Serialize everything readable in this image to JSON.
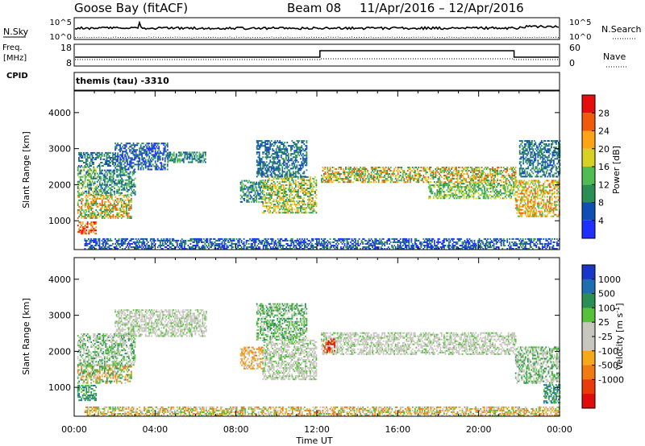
{
  "header": {
    "title": "Goose Bay (fitACF)",
    "beam": "Beam 08",
    "date_range": "11/Apr/2016 – 12/Apr/2016"
  },
  "noise_panel": {
    "left_label": "N.Sky",
    "right_label": "N.Search",
    "left_ticks": [
      "10^5",
      "10^0"
    ],
    "right_ticks": [
      "10^5",
      "10^0"
    ]
  },
  "freq_panel": {
    "left_label_1": "Freq.",
    "left_label_2": "[MHz]",
    "right_label": "Nave",
    "left_ticks": [
      "18",
      "8"
    ],
    "right_ticks": [
      "60",
      "0"
    ],
    "cpid_label": "CPID",
    "cpid_value": "themis (tau) -3310"
  },
  "colors": {
    "power": [
      "#1e30ff",
      "#0f4fb3",
      "#2a8e55",
      "#52bc54",
      "#d8d023",
      "#ffa317",
      "#f15a0b",
      "#e50d0d"
    ],
    "velocity": [
      "#1936c9",
      "#1f6fb0",
      "#2b8f55",
      "#55c23a",
      "#c8c7bf",
      "#c8c7bf",
      "#f5a81a",
      "#f07a14",
      "#e83a0b",
      "#e10b0b"
    ]
  },
  "chart_data": [
    {
      "type": "heatmap",
      "name": "power",
      "ylabel": "Slant Range [km]",
      "xlabel": "Time UT",
      "x_ticks": [
        "00:00",
        "04:00",
        "08:00",
        "12:00",
        "16:00",
        "20:00",
        "00:00"
      ],
      "x_hours": [
        0,
        4,
        8,
        12,
        16,
        20,
        24
      ],
      "xlim_hours": [
        0,
        24
      ],
      "ylim": [
        200,
        4600
      ],
      "y_ticks": [
        1000,
        2000,
        3000,
        4000
      ],
      "colorbar": {
        "label": "Power [dB]",
        "ticks": [
          4,
          8,
          12,
          16,
          20,
          24,
          28
        ],
        "range": [
          0,
          32
        ]
      },
      "regions": [
        {
          "t0": 0.15,
          "t1": 1.1,
          "r0": 620,
          "r1": 950,
          "levels": [
            5,
            6,
            7
          ]
        },
        {
          "t0": 0.15,
          "t1": 2.8,
          "r0": 1050,
          "r1": 1700,
          "levels": [
            3,
            4,
            5,
            6,
            2
          ]
        },
        {
          "t0": 0.15,
          "t1": 1.3,
          "r0": 1700,
          "r1": 2500,
          "levels": [
            2,
            3,
            1,
            4
          ]
        },
        {
          "t0": 1.3,
          "t1": 3.0,
          "r0": 1700,
          "r1": 2400,
          "levels": [
            2,
            1,
            3
          ]
        },
        {
          "t0": 0.2,
          "t1": 2.0,
          "r0": 2500,
          "r1": 2900,
          "levels": [
            1,
            2
          ]
        },
        {
          "t0": 2.0,
          "t1": 4.6,
          "r0": 2400,
          "r1": 3150,
          "levels": [
            1,
            0,
            2
          ]
        },
        {
          "t0": 4.6,
          "t1": 6.5,
          "r0": 2600,
          "r1": 2900,
          "levels": [
            1,
            2,
            3
          ]
        },
        {
          "t0": 8.2,
          "t1": 9.3,
          "r0": 1500,
          "r1": 2100,
          "levels": [
            1,
            2,
            3
          ]
        },
        {
          "t0": 9.3,
          "t1": 12.0,
          "r0": 1200,
          "r1": 2200,
          "levels": [
            2,
            3,
            4,
            5
          ]
        },
        {
          "t0": 9.0,
          "t1": 11.5,
          "r0": 2200,
          "r1": 3200,
          "levels": [
            1,
            2
          ]
        },
        {
          "t0": 12.2,
          "t1": 21.8,
          "r0": 2050,
          "r1": 2500,
          "levels": [
            2,
            3,
            4,
            5,
            6
          ]
        },
        {
          "t0": 17.5,
          "t1": 21.8,
          "r0": 1600,
          "r1": 2050,
          "levels": [
            2,
            3,
            4
          ]
        },
        {
          "t0": 21.8,
          "t1": 24.0,
          "r0": 1100,
          "r1": 2100,
          "levels": [
            3,
            4,
            5,
            6
          ]
        },
        {
          "t0": 22.0,
          "t1": 24.0,
          "r0": 2200,
          "r1": 3200,
          "levels": [
            1,
            2
          ]
        },
        {
          "t0": 0.5,
          "t1": 24.0,
          "r0": 200,
          "r1": 480,
          "levels": [
            0,
            1,
            2
          ]
        }
      ]
    },
    {
      "type": "heatmap",
      "name": "velocity",
      "ylabel": "Slant Range [km]",
      "xlabel": "Time UT",
      "x_ticks": [
        "00:00",
        "04:00",
        "08:00",
        "12:00",
        "16:00",
        "20:00",
        "00:00"
      ],
      "x_hours": [
        0,
        4,
        8,
        12,
        16,
        20,
        24
      ],
      "xlim_hours": [
        0,
        24
      ],
      "ylim": [
        200,
        4600
      ],
      "y_ticks": [
        1000,
        2000,
        3000,
        4000
      ],
      "colorbar": {
        "label": "Velocity [m s^-1]",
        "tick_labels": [
          "1000",
          "500",
          "100",
          "25",
          "-25",
          "-100",
          "-500",
          "-1000"
        ]
      },
      "regions": [
        {
          "t0": 0.15,
          "t1": 1.1,
          "r0": 620,
          "r1": 1050,
          "levels": [
            1,
            2,
            3
          ]
        },
        {
          "t0": 0.15,
          "t1": 2.8,
          "r0": 1100,
          "r1": 1600,
          "levels": [
            2,
            3,
            6,
            7,
            4
          ]
        },
        {
          "t0": 0.15,
          "t1": 3.0,
          "r0": 1600,
          "r1": 2500,
          "levels": [
            4,
            4,
            3,
            2
          ]
        },
        {
          "t0": 2.0,
          "t1": 6.5,
          "r0": 2400,
          "r1": 3150,
          "levels": [
            4,
            4,
            4,
            3
          ]
        },
        {
          "t0": 8.2,
          "t1": 9.3,
          "r0": 1500,
          "r1": 2100,
          "levels": [
            4,
            7,
            6
          ]
        },
        {
          "t0": 9.3,
          "t1": 12.0,
          "r0": 1200,
          "r1": 2300,
          "levels": [
            4,
            4,
            4,
            3
          ]
        },
        {
          "t0": 9.0,
          "t1": 11.5,
          "r0": 2300,
          "r1": 3300,
          "levels": [
            4,
            3,
            2
          ]
        },
        {
          "t0": 12.2,
          "t1": 21.8,
          "r0": 1900,
          "r1": 2500,
          "levels": [
            4,
            4,
            4,
            4,
            3
          ]
        },
        {
          "t0": 12.3,
          "t1": 12.9,
          "r0": 1950,
          "r1": 2350,
          "levels": [
            8,
            9,
            7
          ]
        },
        {
          "t0": 21.8,
          "t1": 24.0,
          "r0": 1100,
          "r1": 2100,
          "levels": [
            4,
            4,
            3,
            2
          ]
        },
        {
          "t0": 23.2,
          "t1": 24.0,
          "r0": 550,
          "r1": 1050,
          "levels": [
            3,
            2,
            1
          ]
        },
        {
          "t0": 0.5,
          "t1": 24.0,
          "r0": 200,
          "r1": 450,
          "levels": [
            4,
            6,
            3,
            7
          ]
        }
      ]
    }
  ]
}
